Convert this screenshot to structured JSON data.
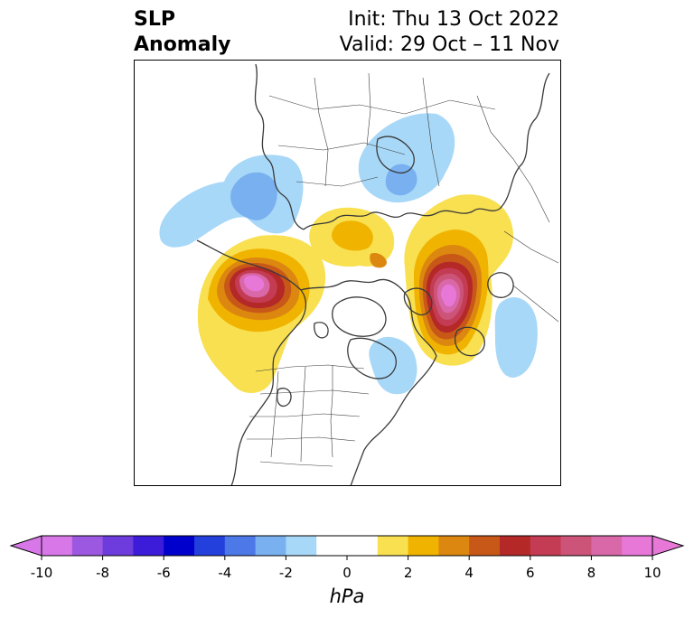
{
  "title": {
    "left_line1": "SLP",
    "left_line2": "Anomaly",
    "right_line1": "Init: Thu 13 Oct 2022",
    "right_line2": "Valid: 29 Oct – 11 Nov"
  },
  "map": {
    "projection": "north-polar-stereographic",
    "field": "sea level pressure anomaly",
    "features": [
      "coastlines",
      "country-borders",
      "us-state-borders"
    ],
    "anomalies": [
      {
        "region": "gulf-of-alaska-bering",
        "sign": "positive",
        "peak": 10
      },
      {
        "region": "scandinavia-north-atlantic",
        "sign": "positive",
        "peak": 10
      },
      {
        "region": "greenland-siberia-arctic",
        "sign": "positive",
        "peak": 3
      },
      {
        "region": "eastern-siberia-east-asia",
        "sign": "negative",
        "peak": -3
      },
      {
        "region": "western-russia-central-asia",
        "sign": "negative",
        "peak": -3
      },
      {
        "region": "hudson-bay-eastern-canada",
        "sign": "negative",
        "peak": -2
      },
      {
        "region": "eastern-north-atlantic",
        "sign": "negative",
        "peak": -2
      }
    ]
  },
  "colorbar": {
    "unit": "hPa",
    "ticks": [
      "-10",
      "-8",
      "-6",
      "-4",
      "-2",
      "0",
      "2",
      "4",
      "6",
      "8",
      "10"
    ],
    "extend": "both",
    "under_color": "#d878e8",
    "over_color": "#e878d8",
    "colors": [
      "#d878e8",
      "#9c58e0",
      "#6e3cdc",
      "#3c1cd8",
      "#0000cc",
      "#2440dc",
      "#4c78e8",
      "#78b0f0",
      "#a8d8f8",
      "#ffffff",
      "#ffffff",
      "#f8e050",
      "#f0b400",
      "#dc8810",
      "#c85818",
      "#b42828",
      "#c43c54",
      "#cc5478",
      "#d868a8",
      "#e878d8"
    ]
  }
}
